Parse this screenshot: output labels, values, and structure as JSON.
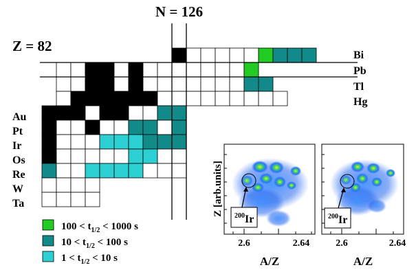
{
  "labels": {
    "z_magic": "Z = 82",
    "n_magic": "N = 126",
    "elements_right": [
      "Bi",
      "Pb",
      "Tl",
      "Hg"
    ],
    "elements_left": [
      "Au",
      "Pt",
      "Ir",
      "Os",
      "Re",
      "W",
      "Ta"
    ]
  },
  "colors": {
    "stable": "#000000",
    "empty": "#ffffff",
    "range_100_1000": "#22cc22",
    "range_10_100": "#138a8a",
    "range_1_10": "#2ccfd2"
  },
  "legend": [
    {
      "text": "100 < t",
      "sub": "1/2",
      "tail": " < 1000 s",
      "color_key": "range_100_1000"
    },
    {
      "text": "10 < t",
      "sub": "1/2",
      "tail": " < 100 s",
      "color_key": "range_10_100"
    },
    {
      "text": "1 < t",
      "sub": "1/2",
      "tail": " < 10 s",
      "color_key": "range_1_10"
    }
  ],
  "chart": {
    "rows": [
      {
        "element": "Bi",
        "cells": "B.....GTTT"
      },
      {
        "element": "Pb",
        "cells": "..BB.B.......G"
      },
      {
        "element": "Tl",
        "cells": "..BB.B.......TT"
      },
      {
        "element": "Hg",
        "cells": ".BBBBBB........."
      },
      {
        "element": "Au",
        "cells": "BBB.BB..TT"
      },
      {
        "element": "Pt",
        "cells": "B..B..TT.T"
      },
      {
        "element": "Ir",
        "cells": "B...LLLTTT"
      },
      {
        "element": "Os",
        "cells": "B.....LL.."
      },
      {
        "element": "Re",
        "cells": "T..LLLL..."
      },
      {
        "element": "W",
        "cells": "...."
      },
      {
        "element": "Ta",
        "cells": "...."
      }
    ]
  },
  "plots": [
    {
      "xlabel": "A/Z",
      "ylabel": "Z [arb.units]",
      "xticks": [
        "2.6",
        "2.64"
      ],
      "callout_mass": "200",
      "callout_element": "Ir"
    },
    {
      "xlabel": "A/Z",
      "xticks": [
        "2.6",
        "2.64"
      ],
      "callout_mass": "200",
      "callout_element": "Ir"
    }
  ]
}
